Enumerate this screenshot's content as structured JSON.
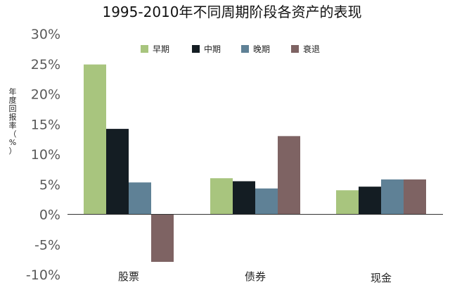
{
  "chart_data": {
    "type": "bar",
    "title": "1995-2010年不同周期阶段各资产的表现",
    "ylabel_chars": [
      "年",
      "度",
      "回",
      "报",
      "率",
      "（",
      "%",
      "）"
    ],
    "categories": [
      "股票",
      "债券",
      "现金"
    ],
    "series": [
      {
        "name": "早期",
        "color": "#a8c57e",
        "values": [
          24.9,
          6.0,
          4.0
        ]
      },
      {
        "name": "中期",
        "color": "#141d23",
        "values": [
          14.2,
          5.5,
          4.6
        ]
      },
      {
        "name": "晚期",
        "color": "#5f8196",
        "values": [
          5.3,
          4.3,
          5.8
        ]
      },
      {
        "name": "衰退",
        "color": "#7e6363",
        "values": [
          -7.9,
          13.0,
          5.8
        ]
      }
    ],
    "ylim": [
      -10,
      30
    ],
    "yticks": [
      30,
      25,
      20,
      15,
      10,
      5,
      0,
      -5,
      -10
    ],
    "ytick_labels": [
      "30%",
      "25%",
      "20%",
      "15%",
      "10%",
      "5%",
      "0%",
      "-5%",
      "-10%"
    ],
    "grid": false,
    "legend_position": "top"
  }
}
